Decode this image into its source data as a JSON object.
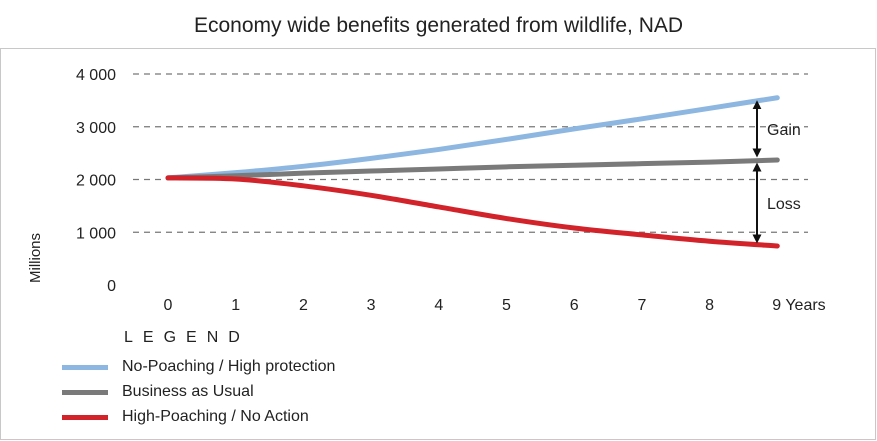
{
  "title": "Economy wide benefits generated from wildlife, NAD",
  "chart_data": {
    "type": "line",
    "title": "Economy wide benefits generated from wildlife, NAD",
    "ylabel": "Millions",
    "xlabel": "Years",
    "x": [
      0,
      1,
      2,
      3,
      4,
      5,
      6,
      7,
      8,
      9
    ],
    "x_tick_labels": [
      "0",
      "1",
      "2",
      "3",
      "4",
      "5",
      "6",
      "7",
      "8",
      "9 Years"
    ],
    "ylim": [
      0,
      4000
    ],
    "y_ticks": [
      0,
      1000,
      2000,
      3000,
      4000
    ],
    "y_tick_labels": [
      "0",
      "1 000",
      "2 000",
      "3 000",
      "4 000"
    ],
    "grid": "horizontal dashed",
    "series": [
      {
        "name": "No-Poaching / High protection",
        "color": "#8db7e0",
        "values": [
          2030,
          2130,
          2250,
          2400,
          2570,
          2760,
          2960,
          3150,
          3350,
          3550
        ]
      },
      {
        "name": "Business as Usual",
        "color": "#7a7a7a",
        "values": [
          2030,
          2070,
          2120,
          2160,
          2200,
          2240,
          2270,
          2300,
          2330,
          2370
        ]
      },
      {
        "name": "High-Poaching / No Action",
        "color": "#d2232a",
        "values": [
          2030,
          2010,
          1880,
          1700,
          1480,
          1260,
          1080,
          950,
          830,
          740
        ]
      }
    ],
    "annotations": [
      {
        "label": "Gain",
        "x": 9,
        "from": 2370,
        "to": 3550
      },
      {
        "label": "Loss",
        "x": 9,
        "from": 740,
        "to": 2370
      }
    ],
    "legend_title": "LEGEND",
    "legend_position": "bottom-left"
  }
}
